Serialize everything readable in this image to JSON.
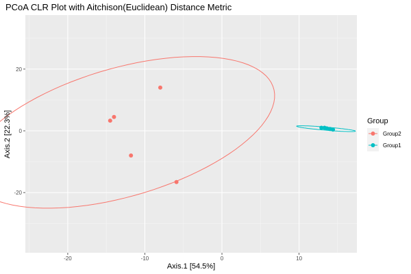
{
  "chart_data": {
    "type": "scatter",
    "title": "PCoA CLR Plot with Aitchison(Euclidean) Distance Metric",
    "xlabel": "Axis.1   [54.5%]",
    "ylabel": "Axis.2   [22.3%]",
    "xlim": [
      -25.5,
      17.5
    ],
    "ylim": [
      -39.5,
      37.5
    ],
    "x_ticks": [
      -20,
      -10,
      0,
      10
    ],
    "y_ticks": [
      -20,
      0,
      20
    ],
    "grid": true,
    "legend": {
      "title": "Group",
      "position": "right",
      "entries": [
        "Group2",
        "Group1"
      ]
    },
    "series": [
      {
        "name": "Group2",
        "color": "#F8766D",
        "points": [
          {
            "x": -8.0,
            "y": 14.0
          },
          {
            "x": -14.0,
            "y": 4.5
          },
          {
            "x": -14.5,
            "y": 3.3
          },
          {
            "x": -11.8,
            "y": -8.0
          },
          {
            "x": -5.9,
            "y": -16.6
          }
        ],
        "ellipse": {
          "cx": -13.0,
          "cy": -0.5,
          "rx": 27.5,
          "ry": 15.5,
          "angle_deg": 57
        }
      },
      {
        "name": "Group1",
        "color": "#00BFC4",
        "points": [
          {
            "x": 12.9,
            "y": 1.0
          },
          {
            "x": 13.3,
            "y": 1.0
          },
          {
            "x": 13.6,
            "y": 0.8
          },
          {
            "x": 14.4,
            "y": 0.4
          },
          {
            "x": 14.0,
            "y": 0.6
          }
        ],
        "ellipse": {
          "cx": 13.5,
          "cy": 0.7,
          "rx": 3.9,
          "ry": 0.5,
          "angle_deg": -12
        }
      }
    ]
  }
}
